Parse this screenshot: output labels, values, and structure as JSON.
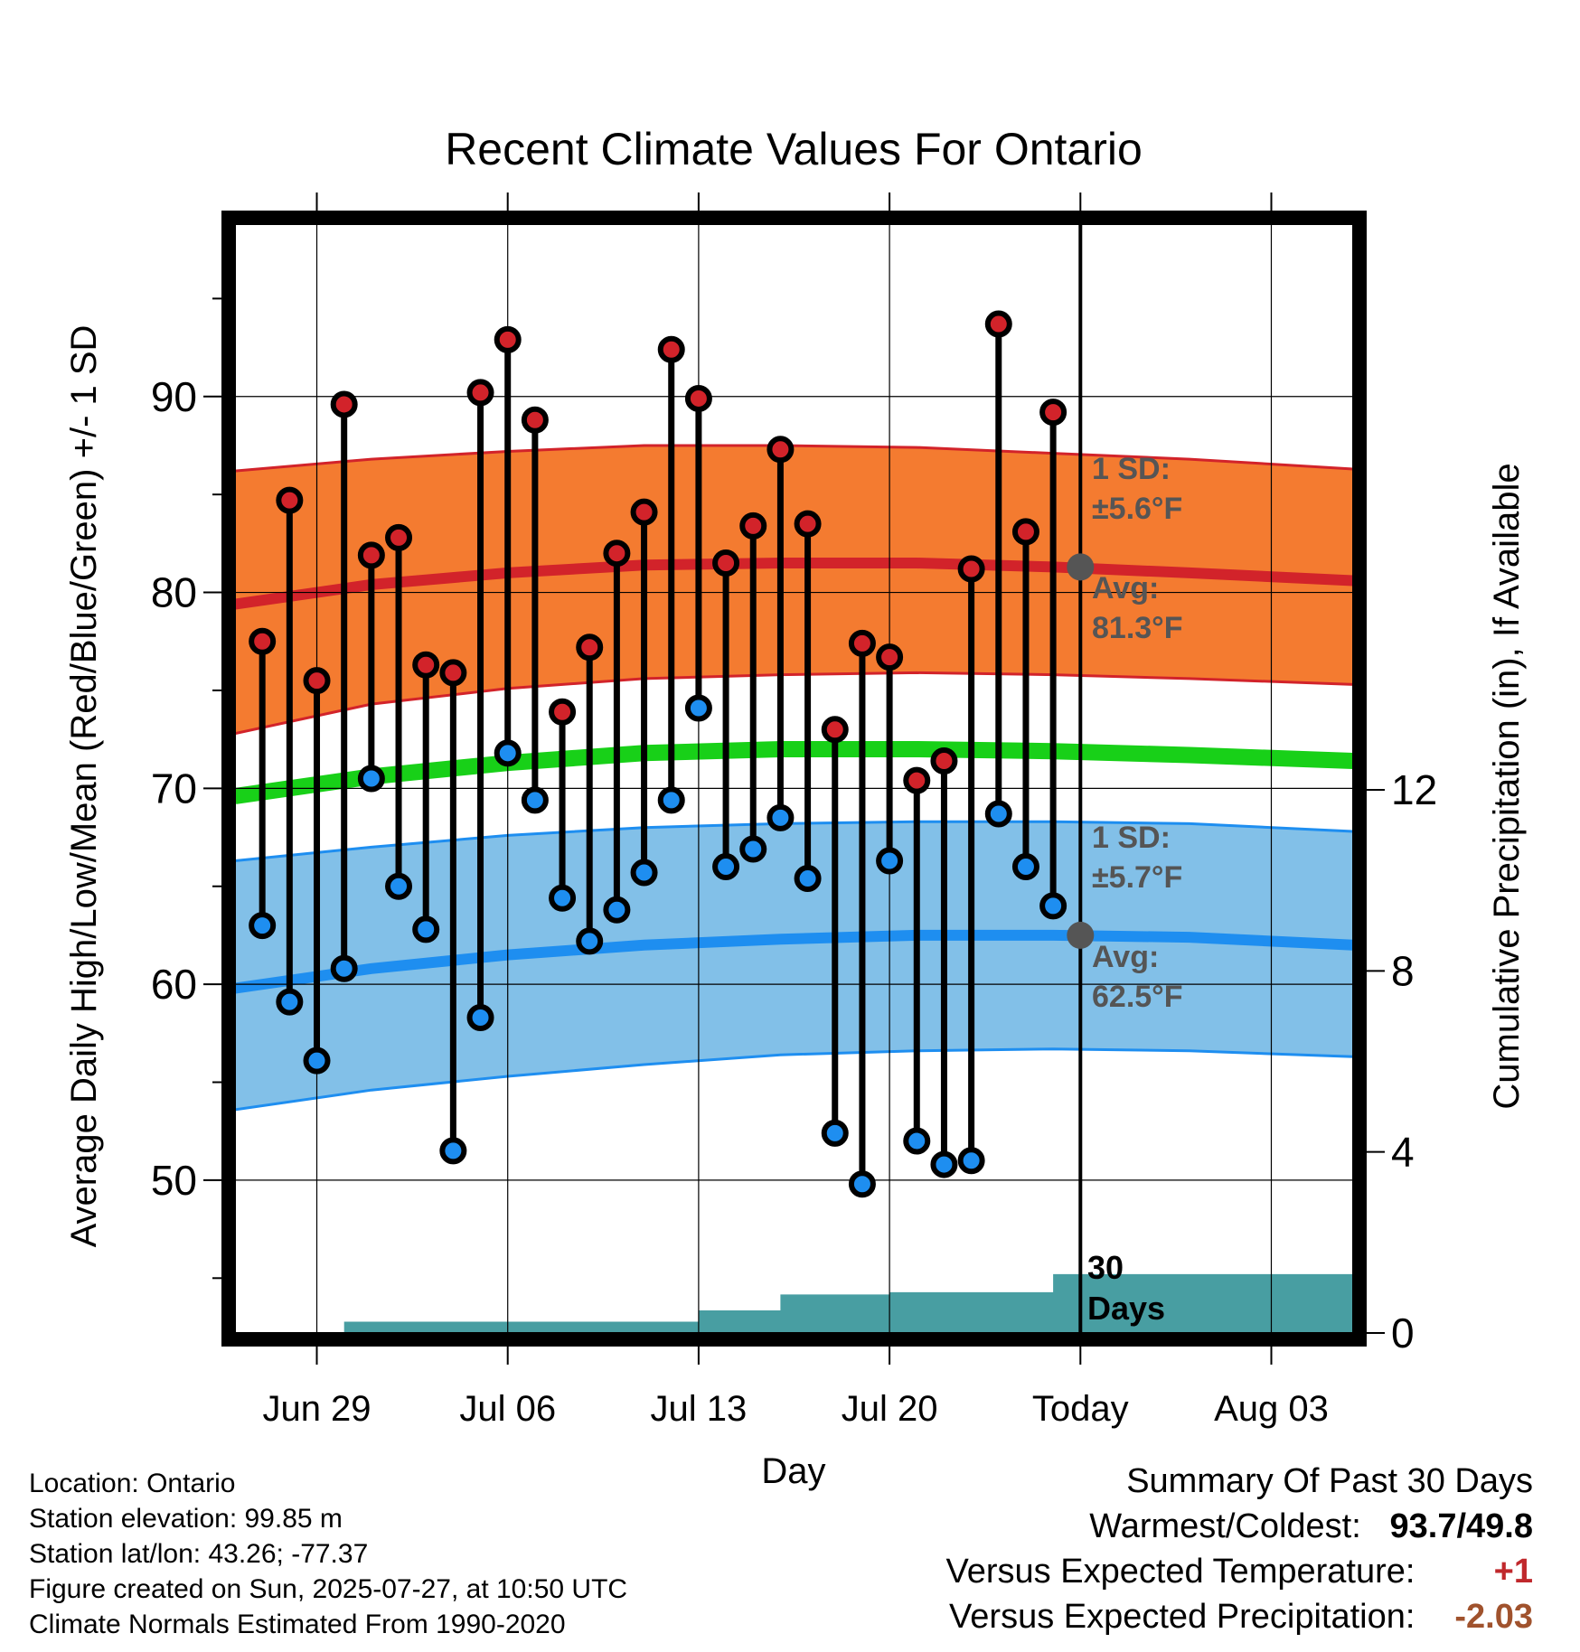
{
  "chart_data": {
    "type": "line",
    "title": "Recent Climate Values For Ontario",
    "xlabel": "Day",
    "ylabel": "Average Daily High/Low/Mean (Red/Blue/Green) +/- 1 SD",
    "y2label": "Cumulative Precipitation (in), If Available",
    "x_start_date": "2025-06-26",
    "x_end_date": "2025-08-06",
    "today_date": "2025-07-27",
    "ylim": [
      42.2,
      98.8
    ],
    "y_ticks": [
      50,
      60,
      70,
      80,
      90
    ],
    "y2lim": [
      0,
      24.5
    ],
    "y2_ticks": [
      0,
      4,
      8,
      12
    ],
    "x_ticks": [
      {
        "date": "2025-06-29",
        "label": "Jun 29"
      },
      {
        "date": "2025-07-06",
        "label": "Jul 06"
      },
      {
        "date": "2025-07-13",
        "label": "Jul 13"
      },
      {
        "date": "2025-07-20",
        "label": "Jul 20"
      },
      {
        "date": "2025-07-27",
        "label": "Today"
      },
      {
        "date": "2025-08-03",
        "label": "Aug 03"
      }
    ],
    "daily_observations": [
      {
        "date": "2025-06-27",
        "high": 77.5,
        "low": 63.0
      },
      {
        "date": "2025-06-28",
        "high": 84.7,
        "low": 59.1
      },
      {
        "date": "2025-06-29",
        "high": 75.5,
        "low": 56.1
      },
      {
        "date": "2025-06-30",
        "high": 89.6,
        "low": 60.8
      },
      {
        "date": "2025-07-01",
        "high": 81.9,
        "low": 70.5
      },
      {
        "date": "2025-07-02",
        "high": 82.8,
        "low": 65.0
      },
      {
        "date": "2025-07-03",
        "high": 76.3,
        "low": 62.8
      },
      {
        "date": "2025-07-04",
        "high": 75.9,
        "low": 51.5
      },
      {
        "date": "2025-07-05",
        "high": 90.2,
        "low": 58.3
      },
      {
        "date": "2025-07-06",
        "high": 92.9,
        "low": 71.8
      },
      {
        "date": "2025-07-07",
        "high": 88.8,
        "low": 69.4
      },
      {
        "date": "2025-07-08",
        "high": 73.9,
        "low": 64.4
      },
      {
        "date": "2025-07-09",
        "high": 77.2,
        "low": 62.2
      },
      {
        "date": "2025-07-10",
        "high": 82.0,
        "low": 63.8
      },
      {
        "date": "2025-07-11",
        "high": 84.1,
        "low": 65.7
      },
      {
        "date": "2025-07-12",
        "high": 92.4,
        "low": 69.4
      },
      {
        "date": "2025-07-13",
        "high": 89.9,
        "low": 74.1
      },
      {
        "date": "2025-07-14",
        "high": 81.5,
        "low": 66.0
      },
      {
        "date": "2025-07-15",
        "high": 83.4,
        "low": 66.9
      },
      {
        "date": "2025-07-16",
        "high": 87.3,
        "low": 68.5
      },
      {
        "date": "2025-07-17",
        "high": 83.5,
        "low": 65.4
      },
      {
        "date": "2025-07-18",
        "high": 73.0,
        "low": 52.4
      },
      {
        "date": "2025-07-19",
        "high": 77.4,
        "low": 49.8
      },
      {
        "date": "2025-07-20",
        "high": 76.7,
        "low": 66.3
      },
      {
        "date": "2025-07-21",
        "high": 70.4,
        "low": 52.0
      },
      {
        "date": "2025-07-22",
        "high": 71.4,
        "low": 50.8
      },
      {
        "date": "2025-07-23",
        "high": 81.2,
        "low": 51.0
      },
      {
        "date": "2025-07-24",
        "high": 93.7,
        "low": 68.7
      },
      {
        "date": "2025-07-25",
        "high": 83.1,
        "low": 66.0
      },
      {
        "date": "2025-07-26",
        "high": 89.2,
        "low": 64.0
      }
    ],
    "normal_high": {
      "dates": [
        "2025-06-26",
        "2025-07-01",
        "2025-07-06",
        "2025-07-11",
        "2025-07-16",
        "2025-07-21",
        "2025-07-26",
        "2025-07-31",
        "2025-08-06"
      ],
      "avg": [
        79.4,
        80.4,
        81.0,
        81.4,
        81.5,
        81.5,
        81.3,
        81.0,
        80.6
      ],
      "minus_sd": [
        72.8,
        74.3,
        75.1,
        75.6,
        75.8,
        75.9,
        75.8,
        75.6,
        75.3
      ],
      "plus_sd": [
        86.2,
        86.8,
        87.2,
        87.5,
        87.5,
        87.4,
        87.1,
        86.8,
        86.3
      ]
    },
    "normal_low": {
      "dates": [
        "2025-06-26",
        "2025-07-01",
        "2025-07-06",
        "2025-07-11",
        "2025-07-16",
        "2025-07-21",
        "2025-07-26",
        "2025-07-31",
        "2025-08-06"
      ],
      "avg": [
        59.8,
        60.8,
        61.5,
        62.0,
        62.3,
        62.5,
        62.5,
        62.4,
        62.0
      ],
      "minus_sd": [
        53.6,
        54.6,
        55.3,
        55.9,
        56.4,
        56.6,
        56.7,
        56.6,
        56.3
      ],
      "plus_sd": [
        66.3,
        67.0,
        67.6,
        68.0,
        68.2,
        68.3,
        68.3,
        68.2,
        67.8
      ]
    },
    "normal_mean": {
      "dates": [
        "2025-06-26",
        "2025-07-01",
        "2025-07-06",
        "2025-07-11",
        "2025-07-16",
        "2025-07-21",
        "2025-07-26",
        "2025-07-31",
        "2025-08-06"
      ],
      "values": [
        69.6,
        70.6,
        71.3,
        71.8,
        72.0,
        72.0,
        71.9,
        71.7,
        71.4
      ]
    },
    "precipitation": {
      "dates": [
        "2025-06-26",
        "2025-06-27",
        "2025-06-28",
        "2025-06-29",
        "2025-06-30",
        "2025-07-01",
        "2025-07-02",
        "2025-07-03",
        "2025-07-04",
        "2025-07-05",
        "2025-07-06",
        "2025-07-07",
        "2025-07-08",
        "2025-07-09",
        "2025-07-10",
        "2025-07-11",
        "2025-07-12",
        "2025-07-13",
        "2025-07-14",
        "2025-07-15",
        "2025-07-16",
        "2025-07-17",
        "2025-07-18",
        "2025-07-19",
        "2025-07-20",
        "2025-07-21",
        "2025-07-22",
        "2025-07-23",
        "2025-07-24",
        "2025-07-25",
        "2025-07-26",
        "2025-08-06"
      ],
      "cumulative_in": [
        0,
        0,
        0,
        0,
        0.25,
        0.25,
        0.25,
        0.25,
        0.25,
        0.25,
        0.25,
        0.25,
        0.25,
        0.25,
        0.25,
        0.25,
        0.25,
        0.5,
        0.5,
        0.5,
        0.85,
        0.85,
        0.85,
        0.85,
        0.9,
        0.9,
        0.9,
        0.9,
        0.9,
        0.9,
        1.3,
        1.3
      ]
    },
    "annotations": {
      "high_sd": "1 SD:",
      "high_sd_value": "±5.6°F",
      "high_avg": "Avg:",
      "high_avg_value": "81.3°F",
      "low_sd": "1 SD:",
      "low_sd_value": "±5.7°F",
      "low_avg": "Avg:",
      "low_avg_value": "62.5°F",
      "days_line1": "30",
      "days_line2": "Days"
    },
    "colors": {
      "high_band": "#f47b30",
      "high_line": "#d2232a",
      "low_band": "#82c0e8",
      "low_line": "#1e8ef0",
      "mean_line": "#18d018",
      "precip": "#489ea2",
      "high_dot": "#d2232a",
      "low_dot": "#1e8ef0",
      "annotation": "#555555"
    }
  },
  "footer": {
    "location": "Location: Ontario",
    "elevation": "Station elevation: 99.85 m",
    "latlon": "Station lat/lon: 43.26; -77.37",
    "created": "Figure created on Sun, 2025-07-27, at 10:50 UTC",
    "normals": "Climate Normals Estimated From 1990-2020"
  },
  "summary": {
    "title": "Summary Of Past 30 Days",
    "warmest_coldest_label": "Warmest/Coldest:",
    "warmest": "93.7",
    "slash": "/",
    "coldest": "49.8",
    "temp_label": "Versus Expected Temperature:",
    "temp_value": "+1",
    "precip_label": "Versus Expected Precipitation:",
    "precip_value": "-2.03"
  }
}
